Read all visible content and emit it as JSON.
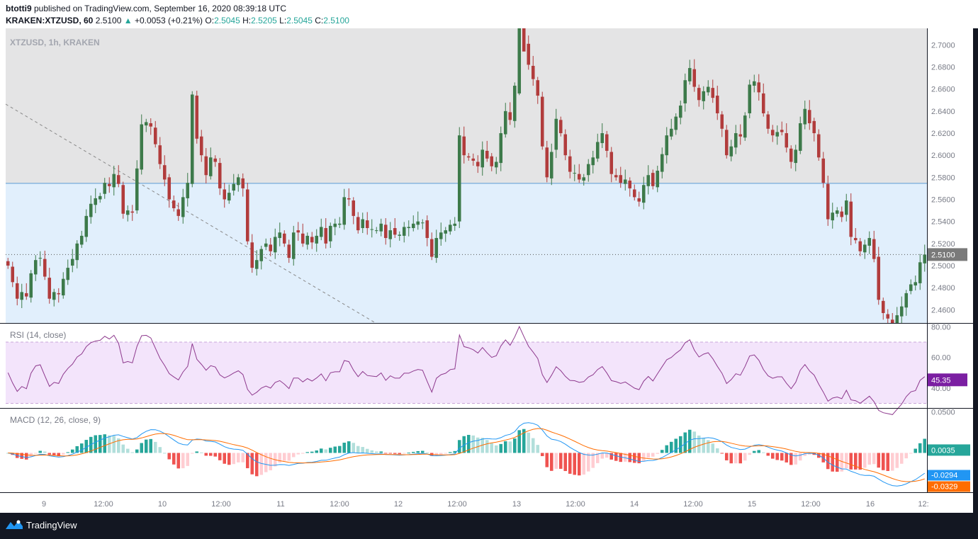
{
  "header": {
    "author": "btotti9",
    "published_text": "published on TradingView.com, September 16, 2020 08:39:18 UTC",
    "symbol": "KRAKEN:XTZUSD, 60",
    "last": "2.5100",
    "change": "+0.0053 (+0.21%)",
    "o_label": "O:",
    "o": "2.5045",
    "h_label": "H:",
    "h": "2.5205",
    "l_label": "L:",
    "l": "2.5045",
    "c_label": "C:",
    "c": "2.5100"
  },
  "legends": {
    "main": "XTZUSD, 1h, KRAKEN",
    "rsi": "RSI (14, close)",
    "macd": "MACD (12, 26, close, 9)"
  },
  "footer": {
    "brand": "TradingView",
    "logo_icon": "tradingview-logo-icon"
  },
  "colors": {
    "up": "#26a69a",
    "down": "#ef5350",
    "candle_up": "#3d7a4a",
    "candle_down": "#b13c3c",
    "zone_gray": "#e4e4e5",
    "zone_blue": "#e1effc",
    "rsi_band": "#f3e4fb",
    "rsi_line": "#8e3a8e",
    "macd_line": "#2196f3",
    "signal_line": "#ff6d00"
  },
  "chart_data": [
    {
      "type": "candlestick",
      "title": "XTZUSD, 1h, KRAKEN",
      "x_ticks": [
        "9",
        "12:00",
        "10",
        "12:00",
        "11",
        "12:00",
        "12",
        "12:00",
        "13",
        "12:00",
        "14",
        "12:00",
        "15",
        "12:00",
        "16",
        "12:"
      ],
      "y_ticks": [
        "2.7000",
        "2.6800",
        "2.6600",
        "2.6400",
        "2.6200",
        "2.6000",
        "2.5800",
        "2.5600",
        "2.5400",
        "2.5200",
        "2.5000",
        "2.4800",
        "2.4600"
      ],
      "ylim": [
        2.448,
        2.715
      ],
      "last_price_label": "2.5100",
      "resistance_level": 2.5745,
      "close": [
        2.5,
        2.485,
        2.47,
        2.476,
        2.472,
        2.493,
        2.505,
        2.507,
        2.49,
        2.47,
        2.476,
        2.474,
        2.488,
        2.498,
        2.506,
        2.52,
        2.527,
        2.545,
        2.556,
        2.561,
        2.563,
        2.575,
        2.572,
        2.583,
        2.574,
        2.547,
        2.55,
        2.548,
        2.588,
        2.628,
        2.63,
        2.626,
        2.61,
        2.592,
        2.578,
        2.56,
        2.552,
        2.545,
        2.562,
        2.575,
        2.655,
        2.615,
        2.6,
        2.582,
        2.598,
        2.594,
        2.57,
        2.56,
        2.566,
        2.574,
        2.58,
        2.57,
        2.522,
        2.498,
        2.505,
        2.515,
        2.52,
        2.513,
        2.526,
        2.53,
        2.52,
        2.507,
        2.53,
        2.53,
        2.52,
        2.527,
        2.521,
        2.527,
        2.535,
        2.52,
        2.536,
        2.538,
        2.538,
        2.562,
        2.56,
        2.545,
        2.532,
        2.542,
        2.534,
        2.533,
        2.532,
        2.538,
        2.525,
        2.532,
        2.528,
        2.528,
        2.535,
        2.535,
        2.538,
        2.54,
        2.539,
        2.525,
        2.508,
        2.525,
        2.53,
        2.532,
        2.537,
        2.538,
        2.618,
        2.6,
        2.598,
        2.595,
        2.59,
        2.605,
        2.597,
        2.59,
        2.594,
        2.62,
        2.64,
        2.632,
        2.663,
        2.721,
        2.702,
        2.682,
        2.669,
        2.654,
        2.608,
        2.58,
        2.603,
        2.633,
        2.62,
        2.6,
        2.585,
        2.584,
        2.578,
        2.58,
        2.592,
        2.598,
        2.612,
        2.62,
        2.604,
        2.583,
        2.58,
        2.575,
        2.578,
        2.57,
        2.562,
        2.558,
        2.573,
        2.582,
        2.572,
        2.586,
        2.601,
        2.618,
        2.624,
        2.635,
        2.645,
        2.668,
        2.679,
        2.662,
        2.65,
        2.658,
        2.662,
        2.652,
        2.638,
        2.624,
        2.6,
        2.608,
        2.62,
        2.617,
        2.636,
        2.664,
        2.667,
        2.657,
        2.638,
        2.624,
        2.618,
        2.621,
        2.621,
        2.607,
        2.594,
        2.605,
        2.629,
        2.642,
        2.629,
        2.62,
        2.598,
        2.575,
        2.542,
        2.548,
        2.55,
        2.544,
        2.559,
        2.526,
        2.523,
        2.513,
        2.519,
        2.525,
        2.506,
        2.469,
        2.457,
        2.452,
        2.447,
        2.455,
        2.463,
        2.475,
        2.483,
        2.485,
        2.503,
        2.51
      ],
      "volume": []
    },
    {
      "type": "line",
      "title": "RSI (14, close)",
      "y_ticks": [
        "80.00",
        "60.00",
        "40.00"
      ],
      "ylim": [
        27,
        82
      ],
      "band": [
        30,
        70
      ],
      "last_value_label": "45.35"
    },
    {
      "type": "bar",
      "title": "MACD (12, 26, close, 9)",
      "y_ticks": [
        "0.0500"
      ],
      "ylim": [
        -0.048,
        0.054
      ],
      "series": [
        {
          "name": "MACD",
          "last": "-0.0294"
        },
        {
          "name": "Signal",
          "last": "-0.0329"
        },
        {
          "name": "Histogram",
          "last": "0.0035"
        }
      ]
    }
  ]
}
